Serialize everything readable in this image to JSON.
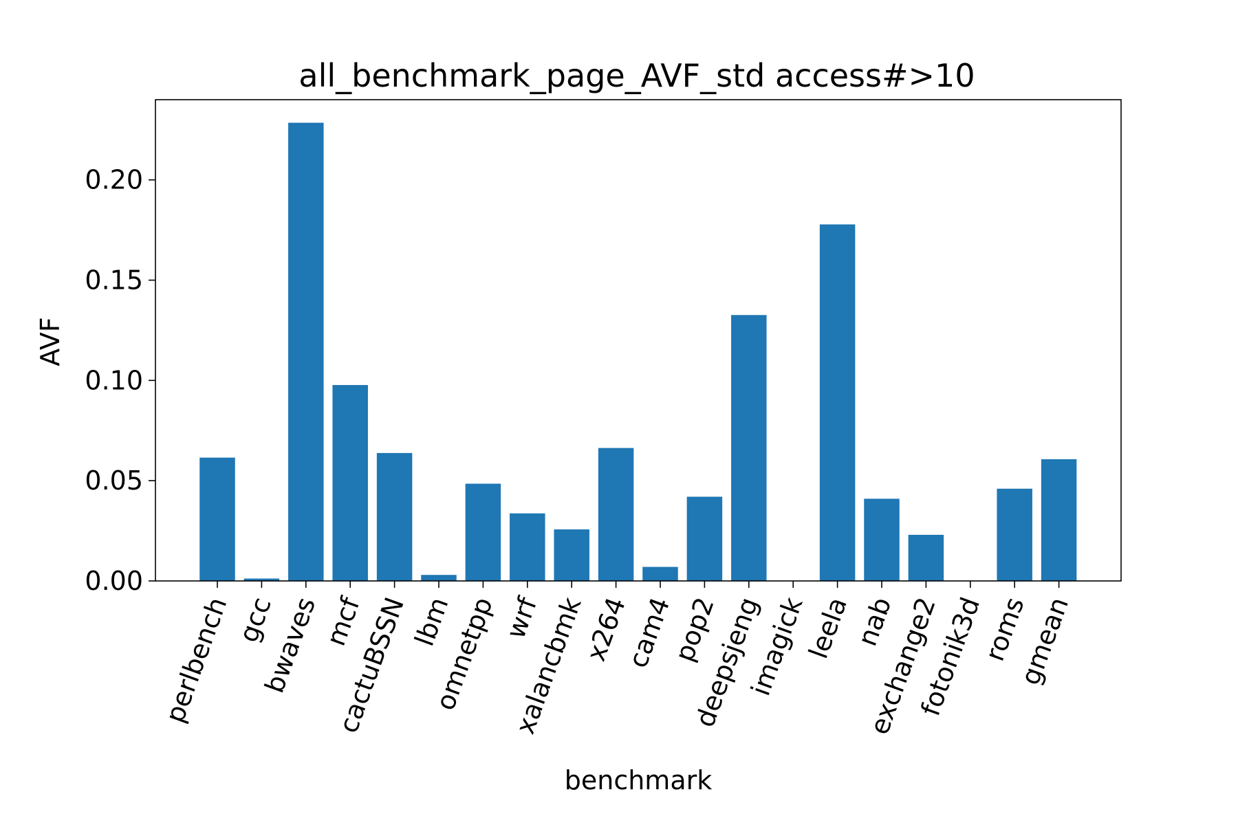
{
  "chart_data": {
    "type": "bar",
    "title": "all_benchmark_page_AVF_std access#>10",
    "xlabel": "benchmark",
    "ylabel": "AVF",
    "ylim": [
      0,
      0.24
    ],
    "yticks": [
      "0.00",
      "0.05",
      "0.10",
      "0.15",
      "0.20"
    ],
    "grid": false,
    "bar_color": "#1f77b4",
    "categories": [
      "perlbench",
      "gcc",
      "bwaves",
      "mcf",
      "cactuBSSN",
      "lbm",
      "omnetpp",
      "wrf",
      "xalancbmk",
      "x264",
      "cam4",
      "pop2",
      "deepsjeng",
      "imagick",
      "leela",
      "nab",
      "exchange2",
      "fotonik3d",
      "roms",
      "gmean"
    ],
    "values": [
      0.0615,
      0.0012,
      0.2285,
      0.0977,
      0.0638,
      0.003,
      0.0485,
      0.0337,
      0.0257,
      0.0663,
      0.007,
      0.042,
      0.1326,
      0.0,
      0.1778,
      0.041,
      0.023,
      0.0,
      0.046,
      0.0607
    ]
  }
}
